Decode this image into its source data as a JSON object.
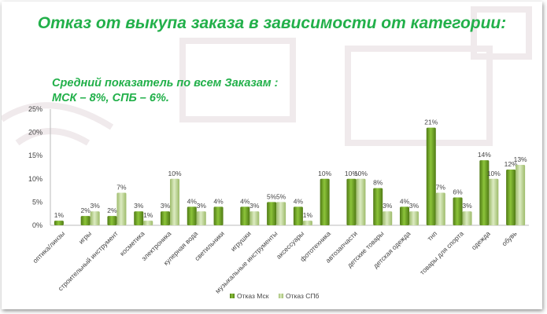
{
  "title": "Отказ от выкупа заказа в зависимости от категории:",
  "subtitle_line1": "Средний показатель по всем Заказам :",
  "subtitle_line2": "МСК – 8%, СПБ – 6%.",
  "colors": {
    "msk": "#6e9e24",
    "spb": "#c3d99a",
    "title": "#22b04a"
  },
  "chart_data": {
    "type": "bar",
    "title": "Отказ от выкупа заказа в зависимости от категории:",
    "categories": [
      "оптика/линзы",
      "игры",
      "строительный инструмент",
      "косметика",
      "электроника",
      "кулерная вода",
      "светильники",
      "игрушки",
      "музыкальные инструменты",
      "аксессуары",
      "фототехника",
      "автозапчасти",
      "детские товары",
      "детская одежда",
      "тнп",
      "товары для спорта",
      "одежда",
      "обувь"
    ],
    "series": [
      {
        "name": "Отказ Мск",
        "values": [
          1,
          2,
          2,
          3,
          3,
          4,
          4,
          4,
          5,
          4,
          10,
          10,
          8,
          4,
          21,
          6,
          14,
          12
        ]
      },
      {
        "name": "Отказ СПб",
        "values": [
          null,
          3,
          7,
          1,
          10,
          3,
          null,
          3,
          5,
          1,
          null,
          10,
          3,
          3,
          7,
          3,
          10,
          13
        ]
      }
    ],
    "yticks": [
      "0%",
      "5%",
      "10%",
      "15%",
      "20%",
      "25%"
    ],
    "ylim": [
      0,
      25
    ],
    "legend": "bottom",
    "grid": false
  }
}
